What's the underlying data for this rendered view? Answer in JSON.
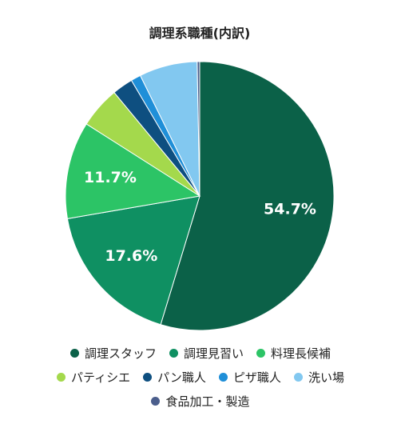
{
  "chart_data": {
    "type": "pie",
    "title": "調理系職種(内訳)",
    "categories": [
      "調理スタッフ",
      "調理見習い",
      "料理長候補",
      "パティシエ",
      "パン職人",
      "ピザ職人",
      "洗い場",
      "食品加工・製造"
    ],
    "values": [
      54.7,
      17.6,
      11.7,
      5.0,
      2.5,
      1.2,
      7.0,
      0.3
    ],
    "value_labels": [
      "54.7%",
      "17.6%",
      "11.7%",
      null,
      null,
      null,
      null,
      null
    ],
    "colors": [
      "#0b6148",
      "#0f9062",
      "#2cc466",
      "#a4d94c",
      "#0e4f80",
      "#1f8fd8",
      "#82c8f0",
      "#4b5e8c"
    ],
    "legend": "bottom"
  }
}
